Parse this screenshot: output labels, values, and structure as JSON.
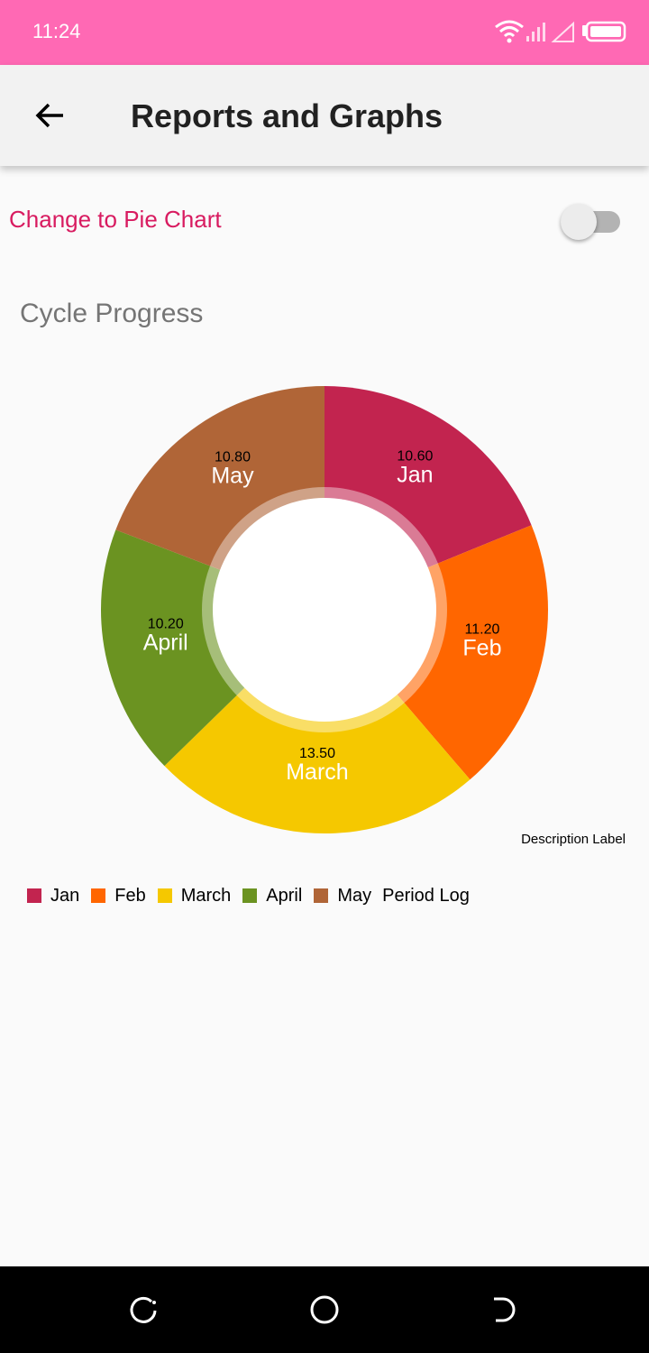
{
  "status_bar": {
    "time": "11:24",
    "icons": [
      "wifi-icon",
      "cellular-signal-icon",
      "no-signal-icon",
      "battery-icon"
    ],
    "background": "#ff69b4"
  },
  "app_bar": {
    "title": "Reports and Graphs",
    "back_icon": "arrow-back-icon"
  },
  "toggle": {
    "label": "Change to Pie Chart",
    "checked": false
  },
  "chart_title": "Cycle Progress",
  "description_label": "Description Label",
  "chart_data": {
    "type": "pie",
    "style": "donut",
    "title": "Cycle Progress",
    "categories": [
      "Jan",
      "Feb",
      "March",
      "April",
      "May"
    ],
    "values": [
      10.6,
      11.2,
      13.5,
      10.2,
      10.8
    ],
    "value_labels": [
      "10.60",
      "11.20",
      "13.50",
      "10.20",
      "10.80"
    ],
    "colors": [
      "#c2244f",
      "#ff6600",
      "#f5c800",
      "#6b9321",
      "#b06537"
    ],
    "legend_series_label": "Period Log",
    "legend_placement": "bottom-left",
    "description": "Description Label"
  },
  "legend": {
    "items": [
      {
        "label": "Jan",
        "color": "#c2244f"
      },
      {
        "label": "Feb",
        "color": "#ff6600"
      },
      {
        "label": "March",
        "color": "#f5c800"
      },
      {
        "label": "April",
        "color": "#6b9321"
      },
      {
        "label": "May",
        "color": "#b06537"
      }
    ],
    "description": "Period Log"
  },
  "nav_bar": {
    "buttons": [
      "recent-apps-icon",
      "home-icon",
      "back-nav-icon"
    ]
  }
}
